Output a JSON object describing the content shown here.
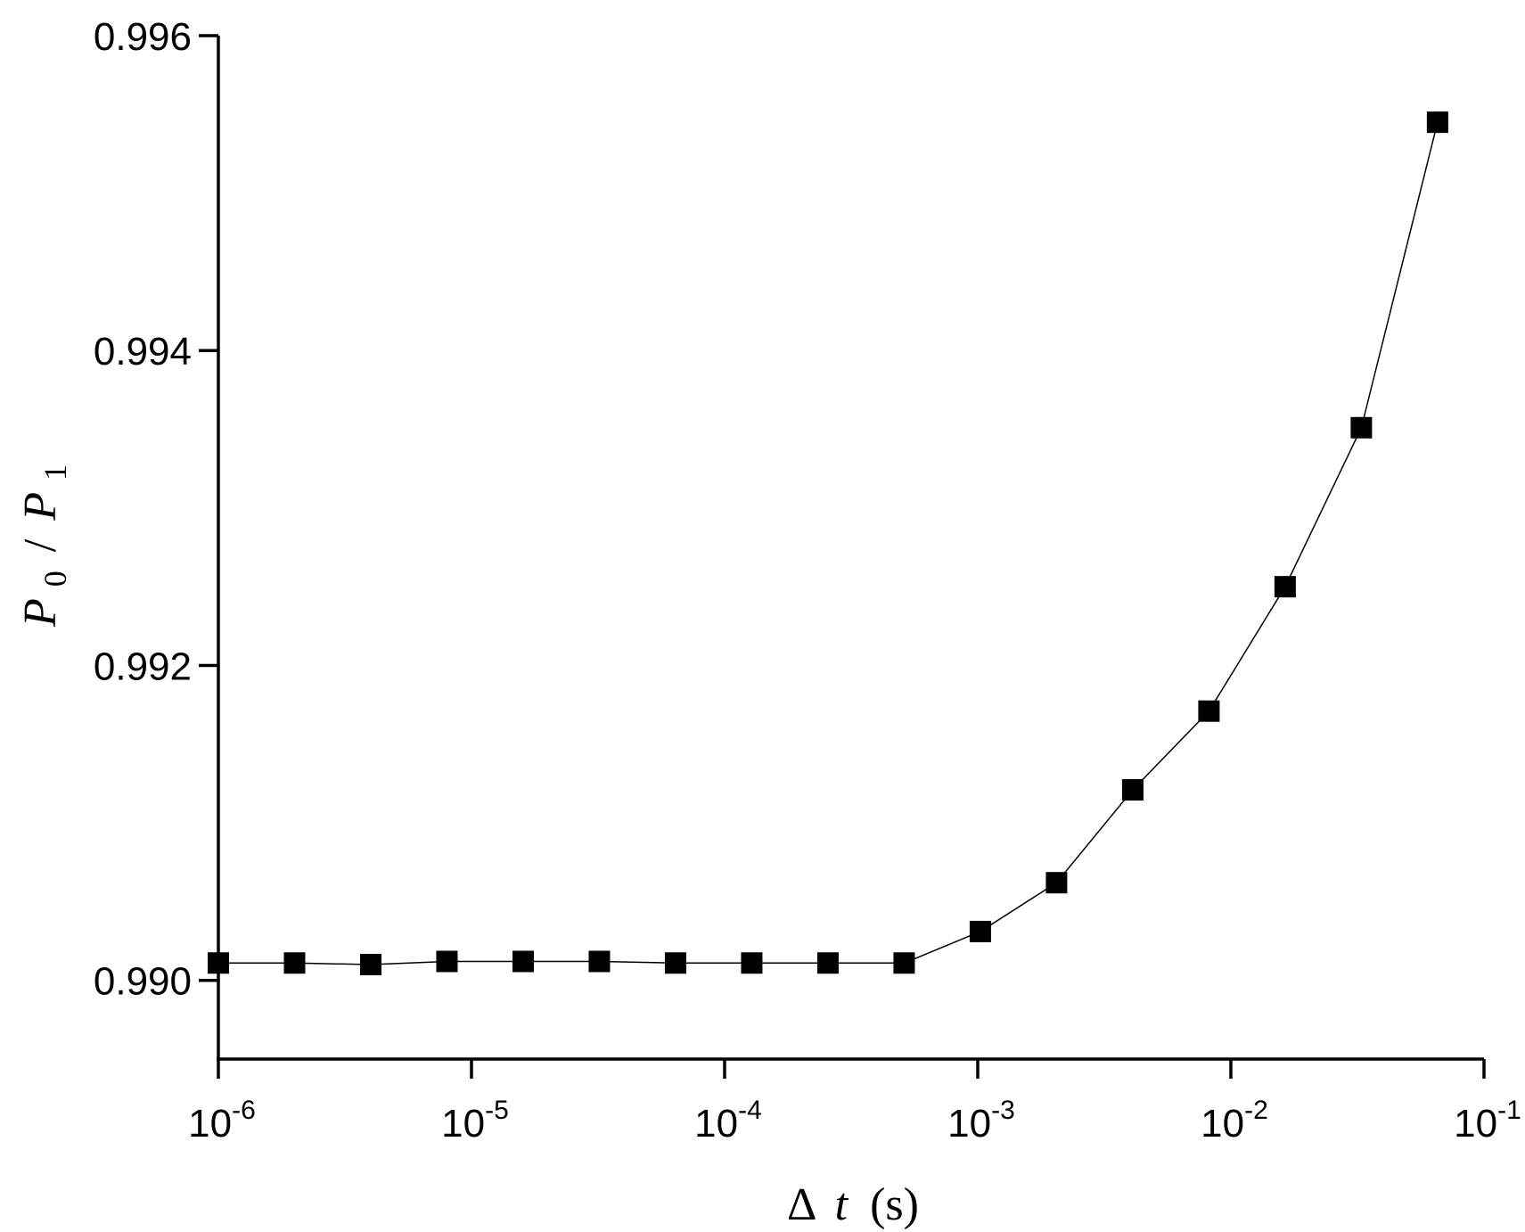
{
  "chart_data": {
    "type": "line",
    "xscale": "log",
    "xlim": [
      1e-06,
      0.1
    ],
    "ylim": [
      0.9895,
      0.996
    ],
    "grid": false,
    "legend": "none",
    "xlabel": {
      "prefix": "Δ",
      "var": "t",
      "unit": "(s)"
    },
    "ylabel": {
      "num": "P",
      "num_sub": "0",
      "sep": "/",
      "den": "P",
      "den_sub": "1"
    },
    "xticks": [
      {
        "value": 1e-06,
        "base": "10",
        "exp": "-6"
      },
      {
        "value": 1e-05,
        "base": "10",
        "exp": "-5"
      },
      {
        "value": 0.0001,
        "base": "10",
        "exp": "-4"
      },
      {
        "value": 0.001,
        "base": "10",
        "exp": "-3"
      },
      {
        "value": 0.01,
        "base": "10",
        "exp": "-2"
      },
      {
        "value": 0.1,
        "base": "10",
        "exp": "-1"
      }
    ],
    "yticks": [
      {
        "value": 0.99,
        "label": "0.990"
      },
      {
        "value": 0.992,
        "label": "0.992"
      },
      {
        "value": 0.994,
        "label": "0.994"
      },
      {
        "value": 0.996,
        "label": "0.996"
      }
    ],
    "series": [
      {
        "marker": "square",
        "color": "#000000",
        "x": [
          1e-06,
          2e-06,
          4e-06,
          8e-06,
          1.6e-05,
          3.2e-05,
          6.4e-05,
          0.000128,
          0.000256,
          0.000512,
          0.001024,
          0.002048,
          0.004096,
          0.008192,
          0.016384,
          0.032768,
          0.065536
        ],
        "y": [
          0.99011,
          0.99011,
          0.9901,
          0.99012,
          0.99012,
          0.99012,
          0.99011,
          0.99011,
          0.99011,
          0.99011,
          0.99031,
          0.99062,
          0.99121,
          0.99171,
          0.9925,
          0.99351,
          0.99545
        ]
      }
    ]
  }
}
